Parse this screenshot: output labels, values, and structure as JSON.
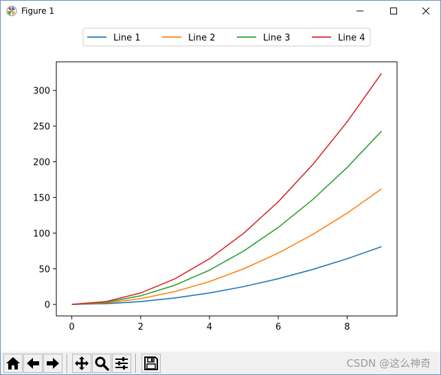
{
  "window": {
    "title": "Figure 1",
    "controls": {
      "minimize_icon": "minimize-icon",
      "maximize_icon": "maximize-icon",
      "close_icon": "close-icon"
    }
  },
  "chart_data": {
    "type": "line",
    "title": "",
    "xlabel": "",
    "ylabel": "",
    "x": [
      0,
      1,
      2,
      3,
      4,
      5,
      6,
      7,
      8,
      9
    ],
    "xticks": [
      "0",
      "2",
      "4",
      "6",
      "8"
    ],
    "yticks": [
      "0",
      "50",
      "100",
      "150",
      "200",
      "250",
      "300"
    ],
    "xlim": [
      -0.45,
      9.45
    ],
    "ylim": [
      -16.2,
      340.2
    ],
    "grid": false,
    "legend": "top-center",
    "series": [
      {
        "name": "Line 1",
        "color": "#1f77b4",
        "values": [
          0,
          1,
          4,
          9,
          16,
          25,
          36,
          49,
          64,
          81
        ]
      },
      {
        "name": "Line 2",
        "color": "#ff7f0e",
        "values": [
          0,
          2,
          8,
          18,
          32,
          50,
          72,
          98,
          128,
          162
        ]
      },
      {
        "name": "Line 3",
        "color": "#2ca02c",
        "values": [
          0,
          3,
          12,
          27,
          48,
          75,
          108,
          147,
          192,
          243
        ]
      },
      {
        "name": "Line 4",
        "color": "#d62728",
        "values": [
          0,
          4,
          16,
          36,
          64,
          100,
          144,
          196,
          256,
          324
        ]
      }
    ]
  },
  "toolbar": {
    "buttons": [
      {
        "name": "home-button",
        "icon": "home-icon"
      },
      {
        "name": "back-button",
        "icon": "arrow-left-icon"
      },
      {
        "name": "forward-button",
        "icon": "arrow-right-icon"
      },
      {
        "name": "pan-button",
        "icon": "move-icon"
      },
      {
        "name": "zoom-button",
        "icon": "magnifier-icon"
      },
      {
        "name": "configure-subplots-button",
        "icon": "sliders-icon"
      },
      {
        "name": "save-button",
        "icon": "floppy-disk-icon"
      }
    ],
    "watermark": "CSDN @这么神奇"
  }
}
